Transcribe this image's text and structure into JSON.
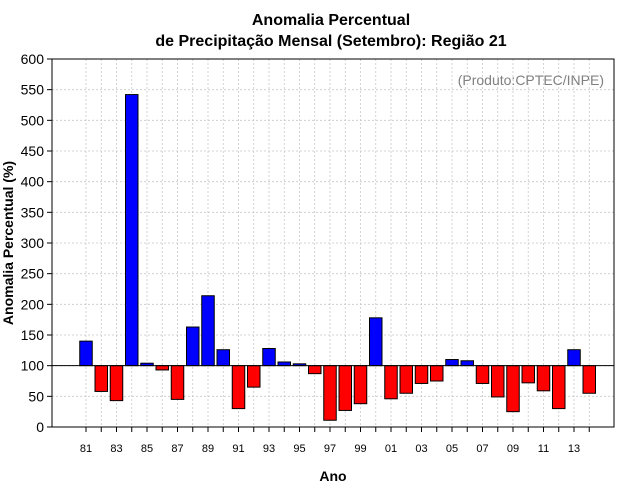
{
  "chart_data": {
    "type": "bar",
    "title": "Anomalia Percentual",
    "subtitle": "de Precipitação Mensal (Setembro): Região 21",
    "xlabel": "Ano",
    "ylabel": "Anomalia Percentual (%)",
    "credit": "(Produto:CPTEC/INPE)",
    "ylim": [
      0,
      600
    ],
    "yticks": [
      0,
      50,
      100,
      150,
      200,
      250,
      300,
      350,
      400,
      450,
      500,
      550,
      600
    ],
    "baseline": 100,
    "grid": true,
    "colors": {
      "above": "#0000ff",
      "below": "#ff0000"
    },
    "categories": [
      "81",
      "82",
      "83",
      "84",
      "85",
      "86",
      "87",
      "88",
      "89",
      "90",
      "91",
      "92",
      "93",
      "94",
      "95",
      "96",
      "97",
      "98",
      "99",
      "00",
      "01",
      "02",
      "03",
      "04",
      "05",
      "06",
      "07",
      "08",
      "09",
      "10",
      "11",
      "12",
      "13",
      "14"
    ],
    "xtick_labels": [
      "81",
      "83",
      "85",
      "87",
      "89",
      "91",
      "93",
      "95",
      "97",
      "99",
      "01",
      "03",
      "05",
      "07",
      "09",
      "11",
      "13"
    ],
    "values": [
      140,
      58,
      43,
      542,
      104,
      93,
      45,
      163,
      214,
      126,
      30,
      65,
      128,
      106,
      103,
      87,
      11,
      27,
      38,
      178,
      46,
      55,
      71,
      75,
      110,
      108,
      71,
      49,
      25,
      72,
      59,
      30,
      126,
      55
    ]
  }
}
